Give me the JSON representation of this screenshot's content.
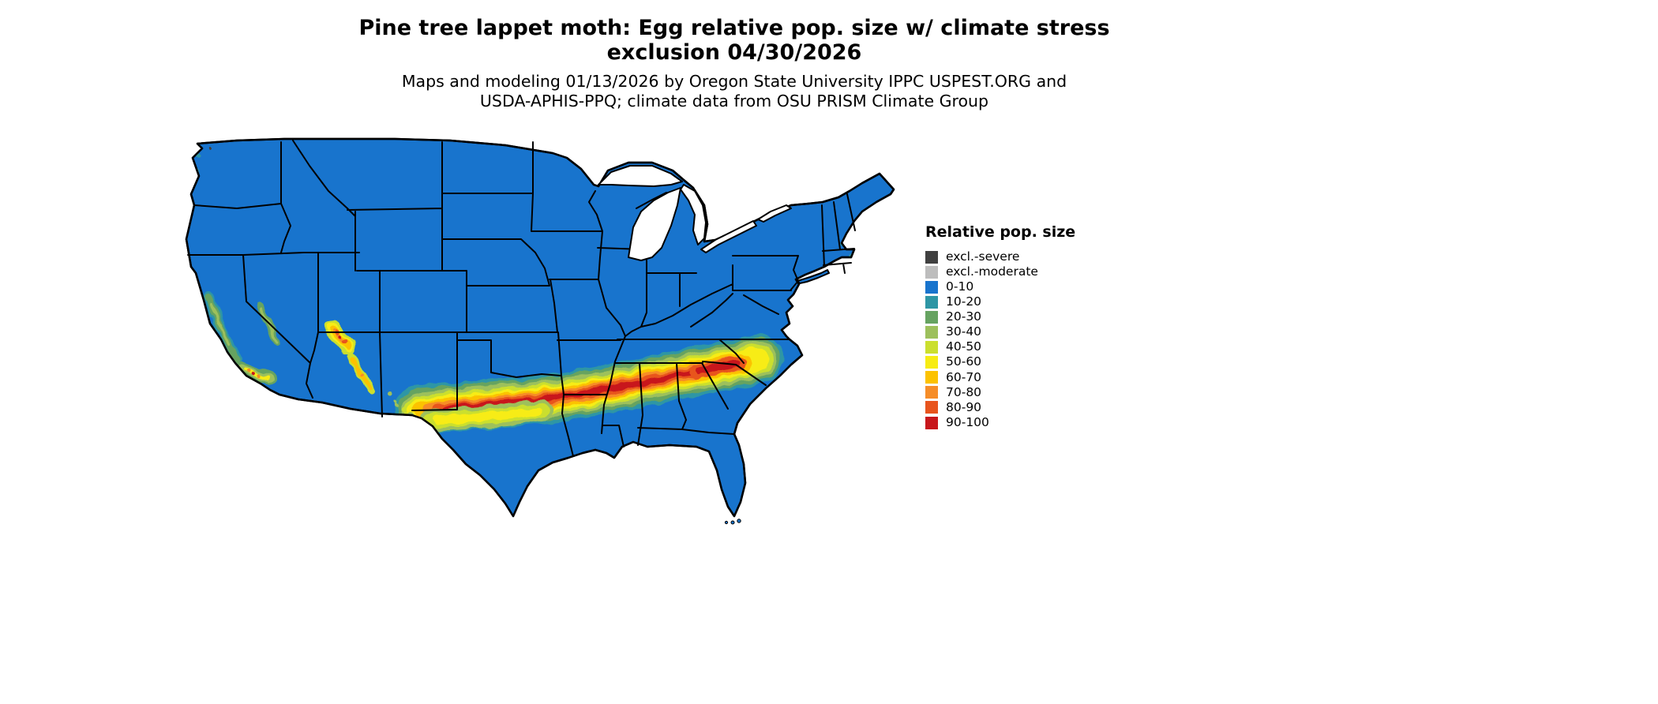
{
  "header": {
    "title": "Pine tree lappet moth: Egg relative pop. size w/ climate stress\nexclusion 04/30/2026",
    "subtitle": "Maps and modeling 01/13/2026 by Oregon State University IPPC USPEST.ORG and\nUSDA-APHIS-PPQ; climate data from OSU PRISM Climate Group"
  },
  "legend": {
    "title": "Relative pop. size",
    "items": [
      {
        "label": "excl.-severe",
        "color": "#404040"
      },
      {
        "label": "excl.-moderate",
        "color": "#BDBDBD"
      },
      {
        "label": "0-10",
        "color": "#1874CD"
      },
      {
        "label": "10-20",
        "color": "#2E96A5"
      },
      {
        "label": "20-30",
        "color": "#66A361"
      },
      {
        "label": "30-40",
        "color": "#9DC05C"
      },
      {
        "label": "40-50",
        "color": "#CBDF2E"
      },
      {
        "label": "50-60",
        "color": "#F7EC13"
      },
      {
        "label": "60-70",
        "color": "#FCC200"
      },
      {
        "label": "70-80",
        "color": "#F68D28"
      },
      {
        "label": "80-90",
        "color": "#E8541D"
      },
      {
        "label": "90-100",
        "color": "#C8171C"
      }
    ]
  },
  "map": {
    "water_color": "#FFFFFF",
    "border_color": "#000000"
  },
  "colors": {
    "excl_severe": "#404040",
    "excl_moderate": "#BDBDBD",
    "c0_10": "#1874CD",
    "c10_20": "#2E96A5",
    "c20_30": "#66A361",
    "c30_40": "#9DC05C",
    "c40_50": "#CBDF2E",
    "c50_60": "#F7EC13",
    "c60_70": "#FCC200",
    "c70_80": "#F68D28",
    "c80_90": "#E8541D",
    "c90_100": "#C8171C"
  }
}
